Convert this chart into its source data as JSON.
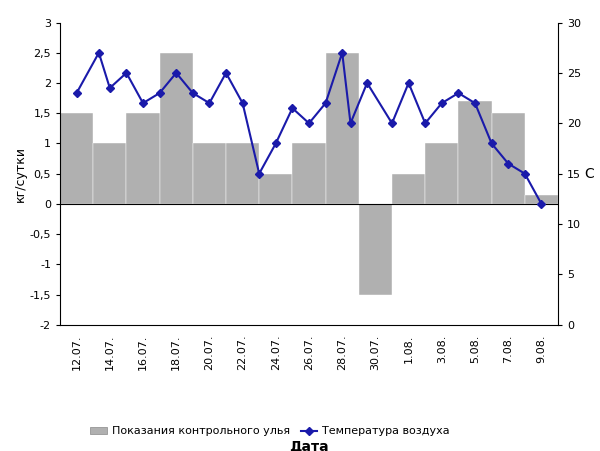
{
  "dates": [
    "12.07.",
    "14.07.",
    "16.07.",
    "18.07.",
    "20.07.",
    "22.07.",
    "24.07.",
    "26.07.",
    "28.07.",
    "30.07.",
    "1.08.",
    "3.08.",
    "5.08.",
    "7.08.",
    "9.08."
  ],
  "bar_values": [
    1.5,
    1.0,
    1.5,
    2.5,
    1.0,
    1.0,
    0.5,
    1.0,
    2.5,
    -1.5,
    0.5,
    1.0,
    1.7,
    1.5,
    0.15
  ],
  "temp_x": [
    0,
    0.67,
    1,
    1.5,
    2,
    2.5,
    3,
    3.5,
    4,
    4.5,
    5,
    5.5,
    6,
    6.5,
    7,
    7.5,
    8,
    8.25,
    8.75,
    9.5,
    10,
    10.5,
    11,
    11.5,
    12,
    12.5,
    13,
    13.5,
    14
  ],
  "temp_values": [
    23,
    27,
    23.5,
    25,
    22,
    23,
    25,
    23,
    22,
    25,
    22,
    15,
    18,
    21.5,
    20,
    22,
    27,
    20,
    24,
    20,
    24,
    20,
    22,
    23,
    22,
    18,
    16,
    15,
    12
  ],
  "bar_color": "#b0b0b0",
  "line_color": "#1a1aaa",
  "left_ylabel": "кг/сутки",
  "right_ylabel": "C",
  "xlabel": "Дата",
  "ylim_left": [
    -2,
    3
  ],
  "ylim_right": [
    0,
    30
  ],
  "yticks_left": [
    -2,
    -1.5,
    -1,
    -0.5,
    0,
    0.5,
    1,
    1.5,
    2,
    2.5,
    3
  ],
  "ytick_labels_left": [
    "-2",
    "-1,5",
    "-1",
    "-0,5",
    "0",
    "0,5",
    "1",
    "1,5",
    "2",
    "2,5",
    "3"
  ],
  "yticks_right": [
    0,
    5,
    10,
    15,
    20,
    25,
    30
  ],
  "legend_bar": "Показания контрольного улья",
  "legend_line": "Температура воздуха",
  "background_color": "#ffffff",
  "fig_width": 6.0,
  "fig_height": 4.51
}
